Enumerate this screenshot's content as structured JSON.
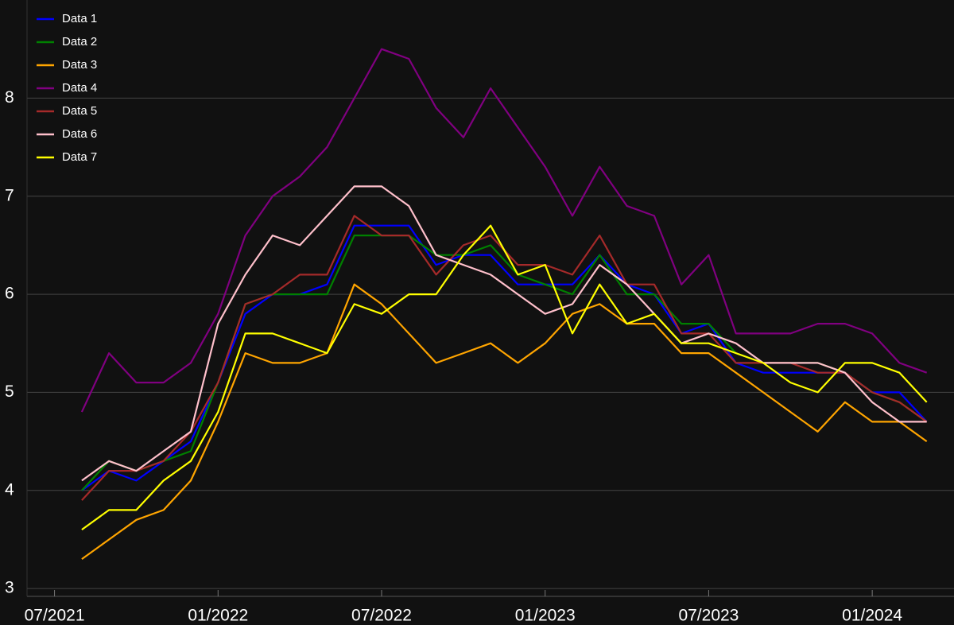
{
  "chart_data": {
    "type": "line",
    "background": "#111111",
    "grid": true,
    "legend": "upper left",
    "x": [
      "2021-08",
      "2021-09",
      "2021-10",
      "2021-11",
      "2021-12",
      "2022-01",
      "2022-02",
      "2022-03",
      "2022-04",
      "2022-05",
      "2022-06",
      "2022-07",
      "2022-08",
      "2022-09",
      "2022-10",
      "2022-11",
      "2022-12",
      "2023-01",
      "2023-02",
      "2023-03",
      "2023-04",
      "2023-05",
      "2023-06",
      "2023-07",
      "2023-08",
      "2023-09",
      "2023-10",
      "2023-11",
      "2023-12",
      "2024-01",
      "2024-02",
      "2024-03"
    ],
    "xlim": [
      "2021-05",
      "2024-04"
    ],
    "xticks": [
      {
        "value": "2021-07",
        "label": "07/2021"
      },
      {
        "value": "2022-01",
        "label": "01/2022"
      },
      {
        "value": "2022-07",
        "label": "07/2022"
      },
      {
        "value": "2023-01",
        "label": "01/2023"
      },
      {
        "value": "2023-07",
        "label": "07/2023"
      },
      {
        "value": "2024-01",
        "label": "01/2024"
      }
    ],
    "ylim": [
      2.92,
      9.0
    ],
    "yticks": [
      3,
      4,
      5,
      6,
      7,
      8
    ],
    "series": [
      {
        "name": "Data 1",
        "color": "#0000ff",
        "values": [
          4.0,
          4.2,
          4.1,
          4.3,
          4.5,
          5.1,
          5.8,
          6.0,
          6.0,
          6.1,
          6.7,
          6.7,
          6.7,
          6.3,
          6.4,
          6.4,
          6.1,
          6.1,
          6.1,
          6.4,
          6.1,
          6.0,
          5.6,
          5.7,
          5.3,
          5.2,
          5.2,
          5.2,
          5.2,
          5.0,
          5.0,
          4.7
        ]
      },
      {
        "name": "Data 2",
        "color": "#008000",
        "values": [
          4.0,
          4.3,
          4.2,
          4.3,
          4.4,
          5.1,
          5.9,
          6.0,
          6.0,
          6.0,
          6.6,
          6.6,
          6.6,
          6.4,
          6.4,
          6.5,
          6.2,
          6.1,
          6.0,
          6.4,
          6.0,
          6.0,
          5.7,
          5.7,
          5.4,
          5.3,
          5.3,
          5.3,
          5.2,
          5.0,
          4.9,
          4.7
        ]
      },
      {
        "name": "Data 3",
        "color": "#ffa500",
        "values": [
          3.3,
          3.5,
          3.7,
          3.8,
          4.1,
          4.7,
          5.4,
          5.3,
          5.3,
          5.4,
          6.1,
          5.9,
          5.6,
          5.3,
          5.4,
          5.5,
          5.3,
          5.5,
          5.8,
          5.9,
          5.7,
          5.7,
          5.4,
          5.4,
          5.2,
          5.0,
          4.8,
          4.6,
          4.9,
          4.7,
          4.7,
          4.5
        ]
      },
      {
        "name": "Data 4",
        "color": "#800080",
        "values": [
          4.8,
          5.4,
          5.1,
          5.1,
          5.3,
          5.8,
          6.6,
          7.0,
          7.2,
          7.5,
          8.0,
          8.5,
          8.4,
          7.9,
          7.6,
          8.1,
          7.7,
          7.3,
          6.8,
          7.3,
          6.9,
          6.8,
          6.1,
          6.4,
          5.6,
          5.6,
          5.6,
          5.7,
          5.7,
          5.6,
          5.3,
          5.2
        ]
      },
      {
        "name": "Data 5",
        "color": "#a52a2a",
        "values": [
          3.9,
          4.2,
          4.2,
          4.3,
          4.6,
          5.1,
          5.9,
          6.0,
          6.2,
          6.2,
          6.8,
          6.6,
          6.6,
          6.2,
          6.5,
          6.6,
          6.3,
          6.3,
          6.2,
          6.6,
          6.1,
          6.1,
          5.6,
          5.6,
          5.3,
          5.3,
          5.3,
          5.2,
          5.2,
          5.0,
          4.9,
          4.7
        ]
      },
      {
        "name": "Data 6",
        "color": "#ffc0cb",
        "values": [
          4.1,
          4.3,
          4.2,
          4.4,
          4.6,
          5.7,
          6.2,
          6.6,
          6.5,
          6.8,
          7.1,
          7.1,
          6.9,
          6.4,
          6.3,
          6.2,
          6.0,
          5.8,
          5.9,
          6.3,
          6.1,
          5.8,
          5.5,
          5.6,
          5.5,
          5.3,
          5.3,
          5.3,
          5.2,
          4.9,
          4.7,
          4.7
        ]
      },
      {
        "name": "Data 7",
        "color": "#ffff00",
        "values": [
          3.6,
          3.8,
          3.8,
          4.1,
          4.3,
          4.8,
          5.6,
          5.6,
          5.5,
          5.4,
          5.9,
          5.8,
          6.0,
          6.0,
          6.4,
          6.7,
          6.2,
          6.3,
          5.6,
          6.1,
          5.7,
          5.8,
          5.5,
          5.5,
          5.4,
          5.3,
          5.1,
          5.0,
          5.3,
          5.3,
          5.2,
          4.9
        ]
      }
    ]
  }
}
